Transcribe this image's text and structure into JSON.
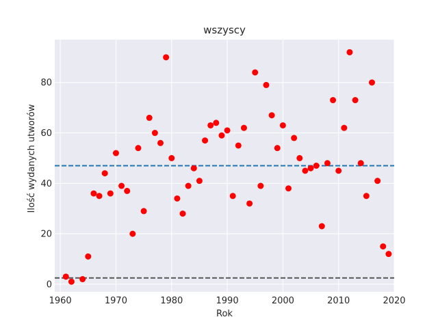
{
  "chart_data": {
    "type": "scatter",
    "title": "wszyscy",
    "xlabel": "Rok",
    "ylabel": "Ilość wydanych utworów",
    "xlim": [
      1959,
      2020
    ],
    "ylim": [
      -3,
      97
    ],
    "xticks": [
      1960,
      1970,
      1980,
      1990,
      2000,
      2010,
      2020
    ],
    "yticks": [
      0,
      20,
      40,
      60,
      80
    ],
    "grid": true,
    "point_color": "#ff0000",
    "background_color": "#eaeaf2",
    "points": [
      [
        1961,
        3
      ],
      [
        1962,
        1
      ],
      [
        1964,
        2
      ],
      [
        1965,
        11
      ],
      [
        1966,
        36
      ],
      [
        1967,
        35
      ],
      [
        1968,
        44
      ],
      [
        1969,
        36
      ],
      [
        1970,
        52
      ],
      [
        1971,
        39
      ],
      [
        1972,
        37
      ],
      [
        1973,
        20
      ],
      [
        1974,
        54
      ],
      [
        1975,
        29
      ],
      [
        1976,
        66
      ],
      [
        1977,
        60
      ],
      [
        1978,
        56
      ],
      [
        1979,
        90
      ],
      [
        1980,
        50
      ],
      [
        1981,
        34
      ],
      [
        1982,
        28
      ],
      [
        1983,
        39
      ],
      [
        1984,
        46
      ],
      [
        1985,
        41
      ],
      [
        1986,
        57
      ],
      [
        1987,
        63
      ],
      [
        1988,
        64
      ],
      [
        1989,
        59
      ],
      [
        1990,
        61
      ],
      [
        1991,
        35
      ],
      [
        1992,
        55
      ],
      [
        1993,
        62
      ],
      [
        1994,
        32
      ],
      [
        1995,
        84
      ],
      [
        1996,
        39
      ],
      [
        1997,
        79
      ],
      [
        1998,
        67
      ],
      [
        1999,
        54
      ],
      [
        2000,
        63
      ],
      [
        2001,
        38
      ],
      [
        2002,
        58
      ],
      [
        2003,
        50
      ],
      [
        2004,
        45
      ],
      [
        2005,
        46
      ],
      [
        2006,
        47
      ],
      [
        2007,
        23
      ],
      [
        2008,
        48
      ],
      [
        2009,
        73
      ],
      [
        2010,
        45
      ],
      [
        2011,
        62
      ],
      [
        2012,
        92
      ],
      [
        2013,
        73
      ],
      [
        2014,
        48
      ],
      [
        2015,
        35
      ],
      [
        2016,
        80
      ],
      [
        2017,
        41
      ],
      [
        2018,
        15
      ],
      [
        2019,
        12
      ]
    ],
    "hlines": [
      {
        "y": 47,
        "color": "#1f77b4",
        "style": "dashed"
      },
      {
        "y": 2.5,
        "color": "#555555",
        "style": "dashed"
      }
    ]
  }
}
